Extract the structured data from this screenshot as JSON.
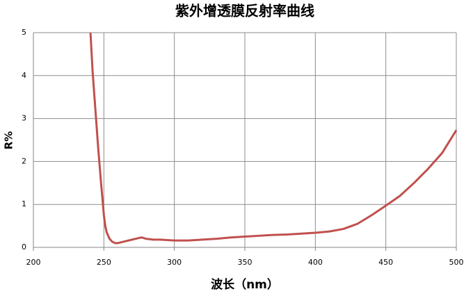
{
  "chart_data": {
    "type": "line",
    "title": "紫外增透膜反射率曲线",
    "x_label": "波长（nm）",
    "y_label": "R%",
    "x": [
      240.5,
      242,
      244,
      246,
      248,
      250,
      251,
      252,
      254,
      256,
      258,
      260,
      265,
      270,
      275,
      277,
      280,
      285,
      290,
      300,
      310,
      320,
      330,
      340,
      350,
      360,
      370,
      380,
      390,
      400,
      410,
      420,
      430,
      440,
      450,
      460,
      470,
      480,
      490,
      500
    ],
    "series": [
      {
        "color": "#c0504d",
        "values": [
          5,
          4.1,
          3.2,
          2.3,
          1.5,
          0.75,
          0.5,
          0.35,
          0.2,
          0.13,
          0.1,
          0.1,
          0.14,
          0.18,
          0.22,
          0.23,
          0.2,
          0.18,
          0.18,
          0.16,
          0.16,
          0.18,
          0.2,
          0.23,
          0.25,
          0.27,
          0.29,
          0.3,
          0.32,
          0.34,
          0.37,
          0.43,
          0.55,
          0.75,
          0.97,
          1.2,
          1.5,
          1.83,
          2.2,
          2.73
        ]
      }
    ],
    "xlim": [
      200,
      500
    ],
    "xticks": [
      200,
      250,
      300,
      350,
      400,
      450,
      500
    ],
    "ylim": [
      0,
      5
    ],
    "yticks": [
      0,
      1,
      2,
      3,
      4,
      5
    ],
    "grid": true
  }
}
